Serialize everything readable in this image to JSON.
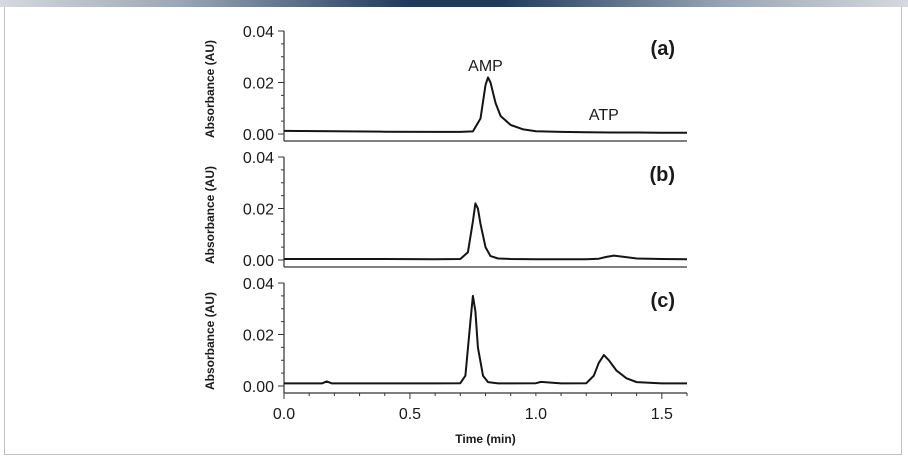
{
  "chart_data": [
    {
      "panel_label": "(a)",
      "type": "line",
      "ylabel": "Absorbance (AU)",
      "ylim": [
        0,
        0.04
      ],
      "yticks": [
        "0.00",
        "0.02",
        "0.04"
      ],
      "xlim": [
        0,
        1.6
      ],
      "annotations": [
        {
          "text": "AMP",
          "x": 0.8,
          "y": 0.0245
        },
        {
          "text": "ATP",
          "x": 1.27,
          "y": 0.0055
        }
      ],
      "series": [
        {
          "name": "trace-a",
          "x": [
            0.0,
            0.2,
            0.4,
            0.6,
            0.7,
            0.75,
            0.78,
            0.8,
            0.81,
            0.82,
            0.84,
            0.86,
            0.9,
            0.95,
            1.0,
            1.1,
            1.2,
            1.3,
            1.4,
            1.5,
            1.6
          ],
          "y": [
            0.0012,
            0.0011,
            0.0009,
            0.0008,
            0.0008,
            0.001,
            0.006,
            0.019,
            0.022,
            0.02,
            0.012,
            0.007,
            0.0035,
            0.0018,
            0.0011,
            0.0008,
            0.0007,
            0.0006,
            0.0006,
            0.0005,
            0.0005
          ]
        }
      ]
    },
    {
      "panel_label": "(b)",
      "type": "line",
      "ylabel": "Absorbance (AU)",
      "ylim": [
        0,
        0.04
      ],
      "yticks": [
        "0.00",
        "0.02",
        "0.04"
      ],
      "xlim": [
        0,
        1.6
      ],
      "annotations": [],
      "series": [
        {
          "name": "trace-b",
          "x": [
            0.0,
            0.2,
            0.4,
            0.6,
            0.7,
            0.73,
            0.75,
            0.76,
            0.77,
            0.78,
            0.8,
            0.82,
            0.85,
            0.9,
            1.0,
            1.1,
            1.2,
            1.25,
            1.28,
            1.31,
            1.35,
            1.4,
            1.5,
            1.6
          ],
          "y": [
            0.0004,
            0.0004,
            0.0004,
            0.0003,
            0.0004,
            0.003,
            0.015,
            0.022,
            0.02,
            0.014,
            0.005,
            0.0015,
            0.0006,
            0.0004,
            0.0003,
            0.0003,
            0.0003,
            0.0005,
            0.0012,
            0.0017,
            0.0012,
            0.0006,
            0.0004,
            0.0003
          ]
        }
      ]
    },
    {
      "panel_label": "(c)",
      "type": "line",
      "ylabel": "Absorbance (AU)",
      "ylim": [
        0,
        0.04
      ],
      "yticks": [
        "0.00",
        "0.02",
        "0.04"
      ],
      "xlim": [
        0,
        1.6
      ],
      "xticks": [
        "0.0",
        "0.5",
        "1.0",
        "1.5"
      ],
      "xlabel": "Time (min)",
      "annotations": [],
      "series": [
        {
          "name": "trace-c",
          "x": [
            0.0,
            0.15,
            0.17,
            0.19,
            0.4,
            0.6,
            0.7,
            0.72,
            0.74,
            0.75,
            0.76,
            0.77,
            0.79,
            0.81,
            0.85,
            0.9,
            1.0,
            1.02,
            1.1,
            1.2,
            1.23,
            1.25,
            1.27,
            1.29,
            1.32,
            1.36,
            1.4,
            1.5,
            1.6
          ],
          "y": [
            0.001,
            0.001,
            0.0018,
            0.001,
            0.001,
            0.001,
            0.0011,
            0.004,
            0.025,
            0.035,
            0.029,
            0.015,
            0.004,
            0.0015,
            0.001,
            0.001,
            0.0011,
            0.0016,
            0.001,
            0.0011,
            0.004,
            0.009,
            0.012,
            0.01,
            0.006,
            0.003,
            0.0015,
            0.001,
            0.001
          ]
        }
      ]
    }
  ],
  "colors": {
    "line": "#141414",
    "axis": "#333333",
    "bar_dark": "#1f3a5a",
    "bar_light": "#c8cdd4"
  }
}
